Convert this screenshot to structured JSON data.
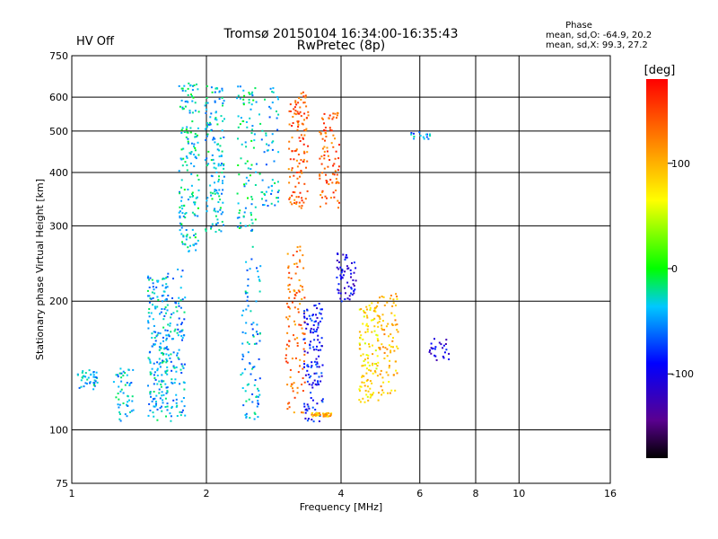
{
  "header": {
    "title_line1": "Tromsø 20150104 16:34:00-16:35:43",
    "title_line2": "RwPretec (8p)",
    "status": "HV Off",
    "status_color": "#cc0000",
    "phase_title": "Phase",
    "phase_o": "mean, sd,O: -64.9, 20.2",
    "phase_x": "mean, sd,X:  99.3, 27.2"
  },
  "chart_data": {
    "type": "scatter",
    "title": "Tromsø 20150104 16:34:00-16:35:43",
    "subtitle": "RwPretec (8p)",
    "xlabel": "Frequency [MHz]",
    "ylabel": "Stationary phase Virtual Height [km]",
    "x_scale": "log",
    "y_scale": "log",
    "xlim": [
      1,
      16
    ],
    "ylim": [
      75,
      750
    ],
    "x_ticks": [
      1,
      2,
      4,
      6,
      8,
      10,
      16
    ],
    "y_ticks": [
      75,
      100,
      200,
      300,
      400,
      500,
      600,
      750
    ],
    "x_gridlines": [
      2,
      4,
      6,
      8,
      10
    ],
    "y_gridlines": [
      100,
      200,
      300,
      400,
      500,
      600
    ],
    "grid": true,
    "colorbar": {
      "label": "[deg]",
      "min": -180,
      "max": 180,
      "ticks": [
        -100,
        0,
        100
      ],
      "placement": "right"
    },
    "clusters": [
      {
        "f": 1.08,
        "h_min": 125,
        "h_max": 140,
        "phase": -40,
        "count": 40
      },
      {
        "f": 1.3,
        "h_min": 105,
        "h_max": 140,
        "phase": -40,
        "count": 50
      },
      {
        "f": 1.55,
        "h_min": 105,
        "h_max": 230,
        "phase": -40,
        "count": 180
      },
      {
        "f": 1.7,
        "h_min": 105,
        "h_max": 240,
        "phase": -45,
        "count": 120
      },
      {
        "f": 1.82,
        "h_min": 260,
        "h_max": 650,
        "phase": -30,
        "count": 160
      },
      {
        "f": 2.08,
        "h_min": 290,
        "h_max": 640,
        "phase": -35,
        "count": 140
      },
      {
        "f": 2.45,
        "h_min": 290,
        "h_max": 640,
        "phase": -30,
        "count": 90
      },
      {
        "f": 2.5,
        "h_min": 105,
        "h_max": 270,
        "phase": -45,
        "count": 90
      },
      {
        "f": 2.75,
        "h_min": 330,
        "h_max": 640,
        "phase": -40,
        "count": 60
      },
      {
        "f": 3.2,
        "h_min": 330,
        "h_max": 620,
        "phase": 140,
        "count": 120
      },
      {
        "f": 3.15,
        "h_min": 110,
        "h_max": 270,
        "phase": 130,
        "count": 110
      },
      {
        "f": 3.45,
        "h_min": 105,
        "h_max": 200,
        "phase": -90,
        "count": 130
      },
      {
        "f": 3.6,
        "h_min": 108,
        "h_max": 110,
        "phase": 100,
        "count": 40
      },
      {
        "f": 3.75,
        "h_min": 330,
        "h_max": 560,
        "phase": 140,
        "count": 90
      },
      {
        "f": 4.1,
        "h_min": 200,
        "h_max": 260,
        "phase": -100,
        "count": 60
      },
      {
        "f": 4.6,
        "h_min": 115,
        "h_max": 200,
        "phase": 80,
        "count": 120
      },
      {
        "f": 5.1,
        "h_min": 120,
        "h_max": 210,
        "phase": 95,
        "count": 80
      },
      {
        "f": 6.6,
        "h_min": 145,
        "h_max": 165,
        "phase": -105,
        "count": 25
      },
      {
        "f": 6.0,
        "h_min": 480,
        "h_max": 500,
        "phase": -50,
        "count": 15
      }
    ]
  }
}
